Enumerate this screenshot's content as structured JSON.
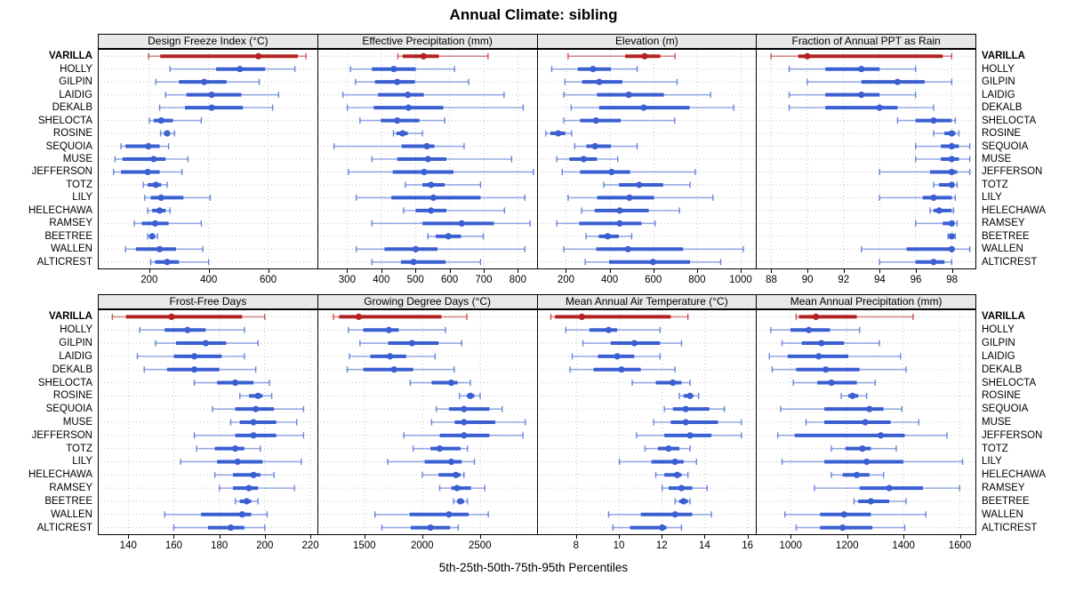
{
  "title": "Annual Climate: sibling",
  "caption": "5th-25th-50th-75th-95th Percentiles",
  "highlight_site": "VARILLA",
  "sites": [
    "VARILLA",
    "HOLLY",
    "GILPIN",
    "LAIDIG",
    "DEKALB",
    "SHELOCTA",
    "ROSINE",
    "SEQUOIA",
    "MUSE",
    "JEFFERSON",
    "TOTZ",
    "LILY",
    "HELECHAWA",
    "RAMSEY",
    "BEETREE",
    "WALLEN",
    "ALTICREST"
  ],
  "colors": {
    "highlight": "#b22222",
    "normal": "#3a5fd0",
    "grid": "#c6c6cc",
    "strip_bg": "#e8e8e8",
    "panel_border": "#000000",
    "text": "#000000"
  },
  "percentiles": [
    "5th",
    "25th",
    "50th",
    "75th",
    "95th"
  ],
  "chart_data": [
    {
      "type": "interval-dot",
      "title": "Design Freeze Index (°C)",
      "grid": [
        0,
        0
      ],
      "xlim": [
        30,
        765
      ],
      "ticks": [
        200,
        400,
        600
      ],
      "values": [
        [
          198,
          237,
          567,
          700,
          727
        ],
        [
          270,
          425,
          505,
          590,
          690
        ],
        [
          222,
          300,
          385,
          460,
          570
        ],
        [
          255,
          325,
          410,
          510,
          635
        ],
        [
          235,
          320,
          410,
          515,
          615
        ],
        [
          200,
          215,
          240,
          280,
          375
        ],
        [
          238,
          250,
          260,
          270,
          285
        ],
        [
          105,
          120,
          197,
          235,
          265
        ],
        [
          85,
          110,
          215,
          255,
          330
        ],
        [
          80,
          105,
          195,
          235,
          310
        ],
        [
          180,
          195,
          222,
          240,
          260
        ],
        [
          185,
          205,
          240,
          315,
          405
        ],
        [
          195,
          210,
          235,
          255,
          270
        ],
        [
          150,
          175,
          220,
          265,
          375
        ],
        [
          195,
          202,
          210,
          220,
          228
        ],
        [
          120,
          155,
          235,
          290,
          380
        ],
        [
          205,
          220,
          260,
          300,
          400
        ]
      ]
    },
    {
      "type": "interval-dot",
      "title": "Effective Precipitation (mm)",
      "grid": [
        0,
        1
      ],
      "xlim": [
        215,
        855
      ],
      "ticks": [
        300,
        400,
        500,
        600,
        700,
        800
      ],
      "values": [
        [
          448,
          462,
          523,
          568,
          712
        ],
        [
          309,
          372,
          436,
          500,
          614
        ],
        [
          324,
          381,
          446,
          498,
          655
        ],
        [
          287,
          390,
          477,
          524,
          759
        ],
        [
          300,
          377,
          479,
          581,
          815
        ],
        [
          337,
          398,
          446,
          511,
          585
        ],
        [
          435,
          444,
          462,
          477,
          520
        ],
        [
          261,
          459,
          533,
          555,
          642
        ],
        [
          372,
          446,
          536,
          590,
          781
        ],
        [
          303,
          433,
          525,
          611,
          845
        ],
        [
          470,
          520,
          545,
          585,
          690
        ],
        [
          326,
          429,
          552,
          690,
          820
        ],
        [
          465,
          500,
          545,
          590,
          760
        ],
        [
          372,
          520,
          635,
          729,
          835
        ],
        [
          536,
          559,
          596,
          633,
          698
        ],
        [
          326,
          409,
          500,
          564,
          820
        ],
        [
          372,
          457,
          494,
          588,
          690
        ]
      ]
    },
    {
      "type": "interval-dot",
      "title": "Elevation (m)",
      "grid": [
        0,
        2
      ],
      "xlim": [
        70,
        1070
      ],
      "ticks": [
        200,
        400,
        600,
        800,
        1000
      ],
      "values": [
        [
          208,
          469,
          558,
          630,
          697
        ],
        [
          133,
          252,
          322,
          404,
          524
        ],
        [
          193,
          272,
          350,
          456,
          707
        ],
        [
          188,
          340,
          486,
          646,
          860
        ],
        [
          222,
          350,
          554,
          764,
          966
        ],
        [
          188,
          263,
          336,
          449,
          696
        ],
        [
          106,
          127,
          163,
          195,
          224
        ],
        [
          238,
          292,
          331,
          404,
          524
        ],
        [
          156,
          214,
          279,
          340,
          435
        ],
        [
          181,
          263,
          407,
          492,
          790
        ],
        [
          371,
          441,
          533,
          643,
          766
        ],
        [
          208,
          341,
          489,
          601,
          871
        ],
        [
          270,
          330,
          444,
          577,
          718
        ],
        [
          156,
          259,
          444,
          544,
          606
        ],
        [
          290,
          348,
          389,
          440,
          499
        ],
        [
          188,
          337,
          482,
          734,
          1010
        ],
        [
          286,
          396,
          597,
          766,
          906
        ]
      ]
    },
    {
      "type": "interval-dot",
      "title": "Fraction of Annual PPT as Rain",
      "grid": [
        0,
        3
      ],
      "xlim": [
        87.2,
        99.3
      ],
      "ticks": [
        88,
        90,
        92,
        94,
        96,
        98
      ],
      "values": [
        [
          88,
          89.5,
          90,
          97.5,
          98
        ],
        [
          89,
          91,
          93,
          94,
          96
        ],
        [
          90,
          93,
          95,
          96.5,
          98
        ],
        [
          89,
          91,
          93,
          94,
          96
        ],
        [
          89,
          91,
          94,
          95,
          97
        ],
        [
          95,
          96,
          97,
          98,
          98.2
        ],
        [
          97,
          97.6,
          98,
          98.2,
          98.4
        ],
        [
          96,
          97.4,
          98,
          98.4,
          99
        ],
        [
          96,
          97.4,
          98,
          98.4,
          99
        ],
        [
          94,
          96.8,
          98,
          98.3,
          99
        ],
        [
          97,
          97.3,
          98,
          98.1,
          98.3
        ],
        [
          94,
          96.4,
          97,
          98,
          98.2
        ],
        [
          96.8,
          97,
          97.3,
          98,
          98.1
        ],
        [
          96,
          97.5,
          98,
          98.1,
          98.3
        ],
        [
          97.8,
          97.9,
          98,
          98.1,
          98.2
        ],
        [
          93,
          95.5,
          98,
          98.1,
          99
        ],
        [
          94,
          96,
          97,
          97.6,
          98
        ]
      ]
    },
    {
      "type": "interval-dot",
      "title": "Frost-Free Days",
      "grid": [
        1,
        0
      ],
      "xlim": [
        127,
        223
      ],
      "ticks": [
        140,
        160,
        180,
        200,
        220
      ],
      "values": [
        [
          133,
          139,
          159,
          190,
          200
        ],
        [
          145,
          156,
          166,
          174,
          191
        ],
        [
          152,
          161,
          174,
          183,
          197
        ],
        [
          144,
          160,
          169,
          181,
          191
        ],
        [
          147,
          157,
          169,
          180,
          196
        ],
        [
          169,
          179,
          187,
          195,
          202
        ],
        [
          189,
          193,
          197,
          199,
          203
        ],
        [
          177,
          187,
          196,
          204,
          217
        ],
        [
          185,
          189,
          195,
          205,
          214
        ],
        [
          169,
          187,
          195,
          205,
          217
        ],
        [
          170,
          178,
          187,
          191,
          198
        ],
        [
          163,
          179,
          188,
          199,
          216
        ],
        [
          178,
          186,
          195,
          198,
          204
        ],
        [
          180,
          186,
          193,
          197,
          213
        ],
        [
          187,
          189,
          192,
          194,
          197
        ],
        [
          156,
          172,
          190,
          194,
          201
        ],
        [
          160,
          175,
          185,
          191,
          200
        ]
      ]
    },
    {
      "type": "interval-dot",
      "title": "Growing Degree Days (°C)",
      "grid": [
        1,
        1
      ],
      "xlim": [
        1100,
        2990
      ],
      "ticks": [
        1500,
        2000,
        2500
      ],
      "values": [
        [
          1230,
          1280,
          1450,
          2165,
          2385
        ],
        [
          1360,
          1490,
          1710,
          1795,
          2200
        ],
        [
          1460,
          1705,
          1910,
          2140,
          2340
        ],
        [
          1370,
          1550,
          1720,
          1860,
          2110
        ],
        [
          1350,
          1490,
          1755,
          1920,
          2275
        ],
        [
          1895,
          2080,
          2250,
          2305,
          2415
        ],
        [
          2320,
          2385,
          2415,
          2450,
          2500
        ],
        [
          2120,
          2230,
          2360,
          2580,
          2690
        ],
        [
          2080,
          2280,
          2360,
          2630,
          2890
        ],
        [
          1840,
          2150,
          2360,
          2580,
          2870
        ],
        [
          1920,
          2070,
          2150,
          2330,
          2390
        ],
        [
          1700,
          2020,
          2250,
          2340,
          2450
        ],
        [
          2000,
          2140,
          2290,
          2330,
          2360
        ],
        [
          2150,
          2250,
          2300,
          2420,
          2540
        ],
        [
          2270,
          2300,
          2330,
          2360,
          2390
        ],
        [
          1590,
          1890,
          2230,
          2400,
          2570
        ],
        [
          1650,
          1900,
          2070,
          2240,
          2310
        ]
      ]
    },
    {
      "type": "interval-dot",
      "title": "Mean Annual Air Temperature (°C)",
      "grid": [
        1,
        2
      ],
      "xlim": [
        6.2,
        16.4
      ],
      "ticks": [
        8,
        10,
        12,
        14,
        16
      ],
      "values": [
        [
          6.8,
          7.0,
          8.25,
          12.4,
          13.2
        ],
        [
          7.5,
          8.6,
          9.5,
          9.9,
          11.9
        ],
        [
          8.3,
          9.6,
          10.7,
          11.9,
          12.9
        ],
        [
          7.8,
          9.0,
          9.9,
          10.7,
          11.9
        ],
        [
          7.7,
          8.8,
          10.1,
          11.0,
          12.6
        ],
        [
          10.6,
          11.7,
          12.5,
          12.9,
          13.3
        ],
        [
          12.8,
          13.0,
          13.3,
          13.45,
          13.7
        ],
        [
          12.1,
          12.5,
          13.1,
          14.2,
          14.9
        ],
        [
          11.6,
          12.4,
          13.1,
          14.6,
          15.7
        ],
        [
          10.8,
          12.1,
          13.3,
          14.3,
          15.7
        ],
        [
          11.2,
          11.8,
          12.3,
          12.8,
          13.3
        ],
        [
          10.0,
          11.5,
          12.6,
          13.0,
          13.6
        ],
        [
          11.7,
          12.1,
          12.7,
          12.9,
          13.2
        ],
        [
          12.0,
          12.3,
          12.9,
          13.4,
          14.1
        ],
        [
          12.6,
          12.8,
          13.0,
          13.2,
          13.3
        ],
        [
          9.5,
          11.0,
          12.6,
          13.4,
          14.3
        ],
        [
          9.7,
          10.5,
          12.0,
          12.2,
          12.9
        ]
      ]
    },
    {
      "type": "interval-dot",
      "title": "Mean Annual Precipitation (mm)",
      "grid": [
        1,
        3
      ],
      "xlim": [
        880,
        1655
      ],
      "ticks": [
        1000,
        1200,
        1400,
        1600
      ],
      "values": [
        [
          1020,
          1030,
          1090,
          1235,
          1435
        ],
        [
          930,
          1000,
          1065,
          1140,
          1245
        ],
        [
          970,
          1040,
          1110,
          1190,
          1315
        ],
        [
          925,
          990,
          1100,
          1205,
          1390
        ],
        [
          935,
          1020,
          1125,
          1245,
          1410
        ],
        [
          1010,
          1095,
          1145,
          1235,
          1300
        ],
        [
          1180,
          1205,
          1220,
          1240,
          1270
        ],
        [
          965,
          1120,
          1280,
          1330,
          1395
        ],
        [
          1055,
          1120,
          1265,
          1355,
          1455
        ],
        [
          955,
          1015,
          1320,
          1405,
          1555
        ],
        [
          1145,
          1195,
          1255,
          1285,
          1375
        ],
        [
          970,
          1120,
          1270,
          1400,
          1610
        ],
        [
          1145,
          1185,
          1235,
          1280,
          1330
        ],
        [
          1085,
          1245,
          1350,
          1470,
          1600
        ],
        [
          1225,
          1240,
          1285,
          1350,
          1410
        ],
        [
          980,
          1105,
          1190,
          1285,
          1480
        ],
        [
          1020,
          1105,
          1185,
          1290,
          1405
        ]
      ]
    }
  ]
}
